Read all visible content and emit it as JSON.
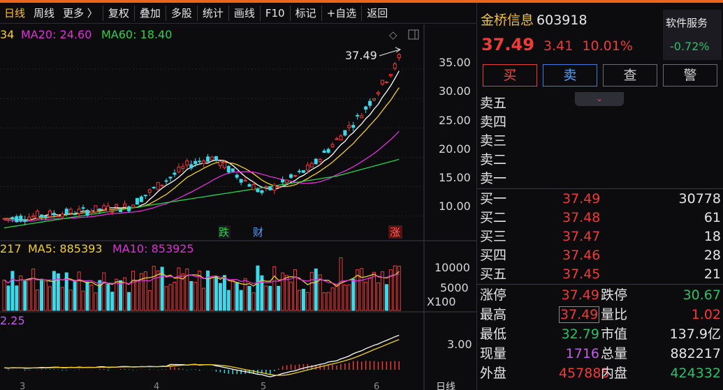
{
  "toolbar": {
    "tabs": [
      "日线",
      "周线",
      "更多 〉",
      "复权",
      "叠加",
      "多股",
      "统计",
      "画线",
      "F10",
      "标记",
      "+自选",
      "返回"
    ]
  },
  "chart": {
    "ma_legend": {
      "ma10": "34",
      "ma20": "MA20: 24.60",
      "ma60": "MA60: 18.40"
    },
    "vol_legend": {
      "v": "217",
      "ma5": "MA5: 885393",
      "ma10": "MA10: 853925"
    },
    "macd_legend": "2.25",
    "price_axis": [
      "35.00",
      "30.00",
      "25.00",
      "20.00",
      "15.00",
      "10.00"
    ],
    "vol_axis": [
      "10000",
      "5000"
    ],
    "vol_unit": "X100",
    "macd_axis": "3.00",
    "high_label": "37.49",
    "markers": {
      "die": "跌",
      "cai": "财",
      "zhang": "涨"
    },
    "date_labels": [
      "3",
      "4",
      "5",
      "6"
    ],
    "period_label": "日线"
  },
  "chart_data": {
    "type": "candlestick",
    "price_ylim": [
      7,
      40
    ],
    "last_close": 37.49,
    "ma20": 24.6,
    "ma60": 18.4,
    "volume_ma5": 885393,
    "volume_ma10": 853925
  },
  "stock": {
    "name": "金桥信息",
    "code": "603918",
    "price": "37.49",
    "change": "3.41",
    "change_pct": "10.01%"
  },
  "service": {
    "title": "软件服务",
    "value": "-0.72%"
  },
  "buttons": [
    "买",
    "卖",
    "查",
    "警"
  ],
  "orderbook": {
    "asks": [
      {
        "label": "卖五"
      },
      {
        "label": "卖四"
      },
      {
        "label": "卖三"
      },
      {
        "label": "卖二"
      },
      {
        "label": "卖一"
      }
    ],
    "bids": [
      {
        "label": "买一",
        "price": "37.49",
        "vol": "30778"
      },
      {
        "label": "买二",
        "price": "37.48",
        "vol": "61"
      },
      {
        "label": "买三",
        "price": "37.47",
        "vol": "18"
      },
      {
        "label": "买四",
        "price": "37.46",
        "vol": "28"
      },
      {
        "label": "买五",
        "price": "37.45",
        "vol": "21"
      }
    ]
  },
  "stats": [
    {
      "l1": "涨停",
      "v1": "37.49",
      "c1": "red",
      "l2": "跌停",
      "v2": "30.67",
      "c2": "green"
    },
    {
      "l1": "最高",
      "v1": "37.49",
      "c1": "red",
      "l2": "量比",
      "v2": "1.02",
      "c2": "red"
    },
    {
      "l1": "最低",
      "v1": "32.79",
      "c1": "green",
      "l2": "市值",
      "v2": "137.9亿",
      "c2": "white"
    },
    {
      "l1": "现量",
      "v1": "1716",
      "c1": "purple",
      "l2": "总量",
      "v2": "882217",
      "c2": "white"
    },
    {
      "l1": "外盘",
      "v1": "457885",
      "c1": "red",
      "l2": "内盘",
      "v2": "424332",
      "c2": "green"
    }
  ],
  "colors": {
    "up": "#f03a3a",
    "down": "#3fd8e8",
    "ma5": "#ffffff",
    "ma10": "#f2d02a",
    "ma20": "#e030d8",
    "ma60": "#2ad24a"
  }
}
